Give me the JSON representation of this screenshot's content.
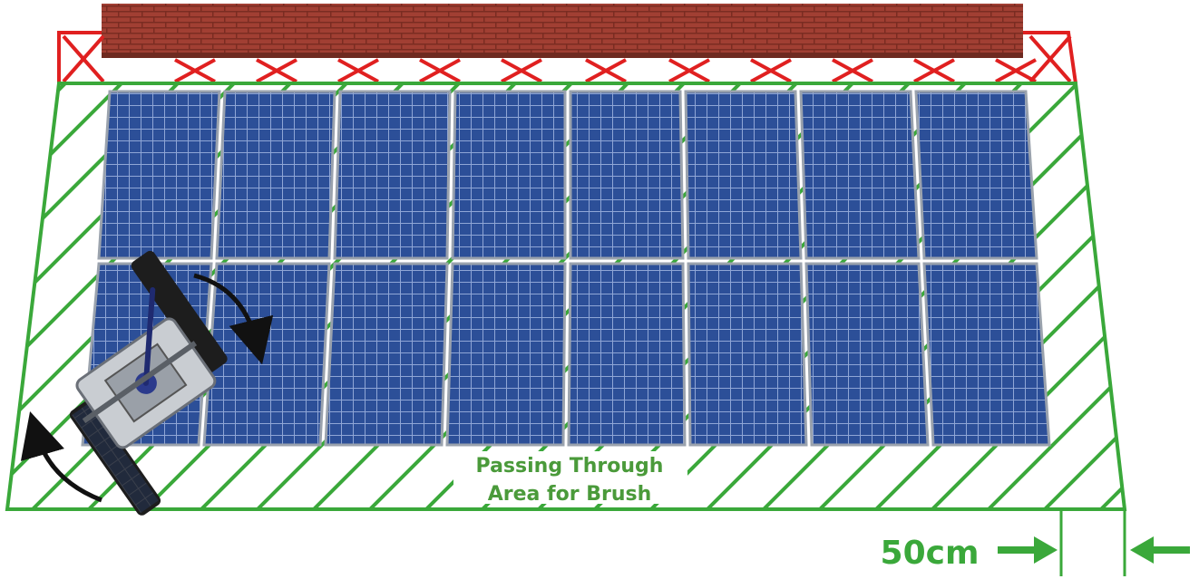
{
  "labels": {
    "area_line1": "Passing Through",
    "area_line2": "Area for Brush",
    "dimension": "50cm"
  },
  "grid": {
    "rows": 2,
    "columns": 8
  },
  "colors": {
    "accent_green": "#4a9a3a",
    "boundary_green": "#3aa83a",
    "no_go_red": "#e02020",
    "panel_blue": "#2c4f98",
    "panel_frame": "#9aa2ad",
    "brick": "#a13f33",
    "arrow": "#111111"
  },
  "icons": {
    "no_go": "red-cross-icon",
    "rotation": "curved-arrow-icon",
    "dimension": "arrow-right-icon"
  }
}
